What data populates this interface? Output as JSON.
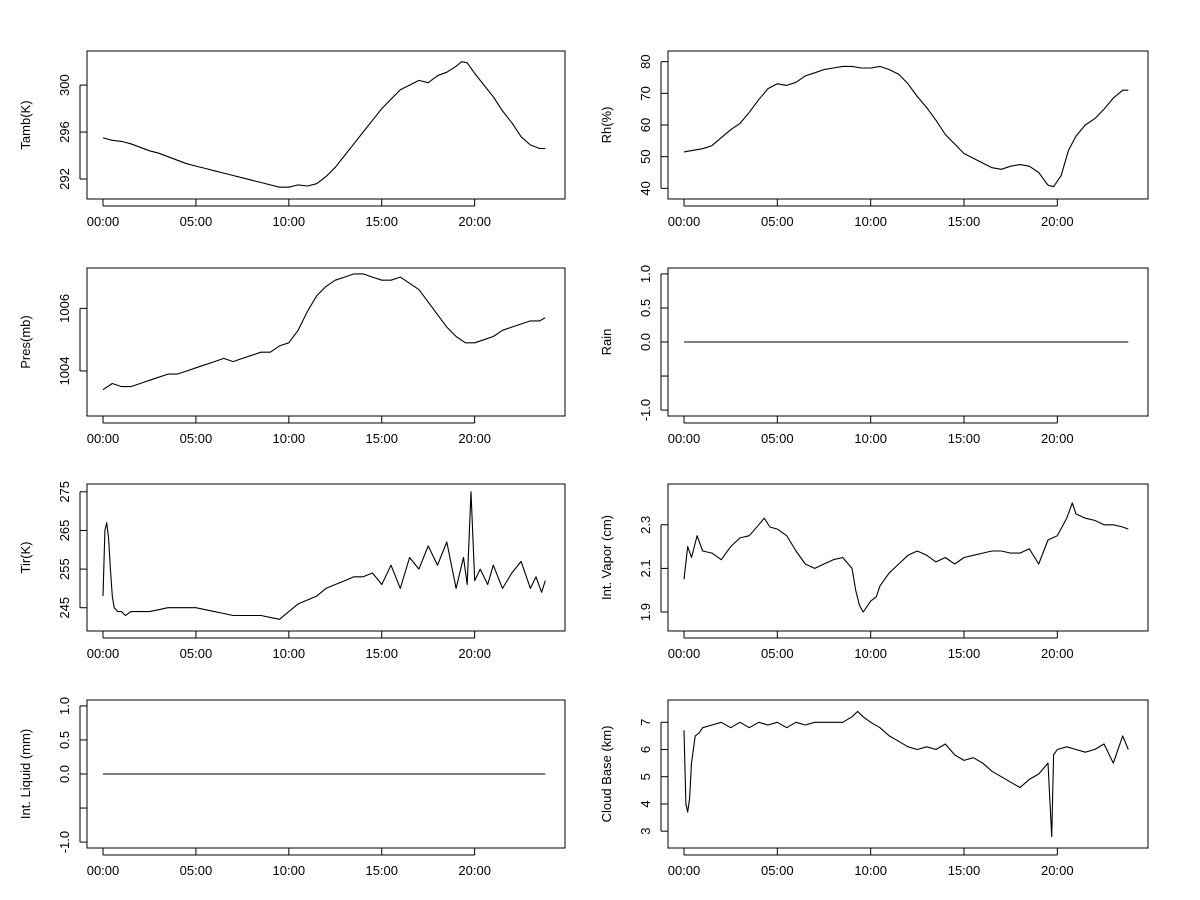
{
  "chart_data": [
    {
      "type": "line",
      "ylabel": "Tamb(K)",
      "x_ticks": [
        "00:00",
        "05:00",
        "10:00",
        "15:00",
        "20:00"
      ],
      "y_ticks": [
        292,
        296,
        300
      ],
      "xlim": [
        0,
        24
      ],
      "ylim": [
        290.8,
        302.4
      ],
      "series": [
        {
          "x": [
            0,
            0.5,
            1,
            1.5,
            2,
            2.5,
            3,
            3.5,
            4,
            4.5,
            5,
            5.5,
            6,
            6.5,
            7,
            7.5,
            8,
            8.5,
            9,
            9.5,
            10,
            10.5,
            11,
            11.5,
            12,
            12.5,
            13,
            13.5,
            14,
            14.5,
            15,
            15.5,
            16,
            16.5,
            17,
            17.5,
            18,
            18.5,
            19,
            19.3,
            19.6,
            20,
            20.5,
            21,
            21.5,
            22,
            22.5,
            23,
            23.5,
            23.8
          ],
          "y": [
            295.5,
            295.3,
            295.2,
            295.0,
            294.7,
            294.4,
            294.2,
            293.9,
            293.6,
            293.3,
            293.1,
            292.9,
            292.7,
            292.5,
            292.3,
            292.1,
            291.9,
            291.7,
            291.5,
            291.3,
            291.3,
            291.5,
            291.4,
            291.6,
            292.2,
            293.0,
            294.0,
            295.0,
            296.0,
            297.0,
            298.0,
            298.8,
            299.6,
            300.0,
            300.4,
            300.2,
            300.8,
            301.1,
            301.6,
            302.0,
            301.9,
            301.0,
            300.0,
            299.0,
            297.8,
            296.8,
            295.6,
            294.9,
            294.6,
            294.6
          ]
        }
      ]
    },
    {
      "type": "line",
      "ylabel": "Rh(%)",
      "x_ticks": [
        "00:00",
        "05:00",
        "10:00",
        "15:00",
        "20:00"
      ],
      "y_ticks": [
        40,
        50,
        60,
        70,
        80
      ],
      "xlim": [
        0,
        24
      ],
      "ylim": [
        38.5,
        81.5
      ],
      "series": [
        {
          "x": [
            0,
            0.5,
            1,
            1.5,
            2,
            2.5,
            3,
            3.5,
            4,
            4.5,
            5,
            5.5,
            6,
            6.5,
            7,
            7.5,
            8,
            8.5,
            9,
            9.5,
            10,
            10.5,
            11,
            11.5,
            12,
            12.5,
            13,
            13.5,
            14,
            14.5,
            15,
            15.5,
            16,
            16.5,
            17,
            17.5,
            18,
            18.5,
            19,
            19.5,
            19.8,
            20.2,
            20.6,
            21,
            21.5,
            22,
            22.5,
            23,
            23.5,
            23.8
          ],
          "y": [
            51.5,
            52,
            52.5,
            53.5,
            56,
            58.5,
            60.5,
            64,
            68,
            71.5,
            73,
            72.5,
            73.5,
            75.5,
            76.5,
            77.5,
            78,
            78.5,
            78.5,
            78,
            78,
            78.5,
            77.5,
            76,
            73,
            69,
            65.5,
            61.5,
            57,
            54,
            51,
            49.5,
            48,
            46.5,
            46,
            47,
            47.5,
            47,
            45,
            41,
            40.5,
            44,
            52,
            56.5,
            60,
            62,
            65,
            68.5,
            71,
            71
          ]
        }
      ]
    },
    {
      "type": "line",
      "ylabel": "Pres(mb)",
      "x_ticks": [
        "00:00",
        "05:00",
        "10:00",
        "15:00",
        "20:00"
      ],
      "y_ticks": [
        1004,
        1006
      ],
      "xlim": [
        0,
        24
      ],
      "ylim": [
        1002.75,
        1007.1
      ],
      "series": [
        {
          "x": [
            0,
            0.5,
            1,
            1.5,
            2,
            2.5,
            3,
            3.5,
            4,
            4.5,
            5,
            5.5,
            6,
            6.5,
            7,
            7.5,
            8,
            8.5,
            9,
            9.5,
            10,
            10.5,
            11,
            11.5,
            12,
            12.5,
            13,
            13.5,
            14,
            14.5,
            15,
            15.5,
            16,
            16.5,
            17,
            17.5,
            18,
            18.5,
            19,
            19.5,
            20,
            20.5,
            21,
            21.5,
            22,
            22.5,
            23,
            23.5,
            23.8
          ],
          "y": [
            1003.4,
            1003.6,
            1003.5,
            1003.5,
            1003.6,
            1003.7,
            1003.8,
            1003.9,
            1003.9,
            1004.0,
            1004.1,
            1004.2,
            1004.3,
            1004.4,
            1004.3,
            1004.4,
            1004.5,
            1004.6,
            1004.6,
            1004.8,
            1004.9,
            1005.3,
            1005.9,
            1006.4,
            1006.7,
            1006.9,
            1007.0,
            1007.1,
            1007.1,
            1007.0,
            1006.9,
            1006.9,
            1007.0,
            1006.8,
            1006.6,
            1006.2,
            1005.8,
            1005.4,
            1005.1,
            1004.9,
            1004.9,
            1005.0,
            1005.1,
            1005.3,
            1005.4,
            1005.5,
            1005.6,
            1005.6,
            1005.7
          ]
        }
      ]
    },
    {
      "type": "line",
      "ylabel": "Rain",
      "x_ticks": [
        "00:00",
        "05:00",
        "10:00",
        "15:00",
        "20:00"
      ],
      "y_ticks": [
        -1.0,
        -0.5,
        0.0,
        0.5,
        1.0
      ],
      "y_tick_labels": [
        "-1.0",
        "",
        "0.0",
        "0.5",
        "1.0"
      ],
      "xlim": [
        0,
        24
      ],
      "ylim": [
        -1.0,
        1.0
      ],
      "series": [
        {
          "x": [
            0,
            24
          ],
          "y": [
            0,
            0
          ]
        }
      ]
    },
    {
      "type": "line",
      "ylabel": "Tir(K)",
      "x_ticks": [
        "00:00",
        "05:00",
        "10:00",
        "15:00",
        "20:00"
      ],
      "y_ticks": [
        245,
        255,
        265,
        275
      ],
      "xlim": [
        0,
        24
      ],
      "ylim": [
        240.5,
        275.5
      ],
      "series": [
        {
          "x": [
            0,
            0.1,
            0.2,
            0.3,
            0.4,
            0.5,
            0.6,
            0.8,
            1,
            1.2,
            1.5,
            2,
            2.5,
            3,
            3.5,
            4,
            4.5,
            5,
            5.5,
            6,
            6.5,
            7,
            7.5,
            8,
            8.5,
            9,
            9.5,
            10,
            10.5,
            11,
            11.5,
            12,
            12.5,
            13,
            13.5,
            14,
            14.5,
            15,
            15.5,
            16,
            16.5,
            17,
            17.5,
            18,
            18.5,
            19,
            19.4,
            19.6,
            19.8,
            20,
            20.3,
            20.7,
            21,
            21.5,
            22,
            22.5,
            23,
            23.3,
            23.6,
            23.8
          ],
          "y": [
            248,
            265,
            267,
            263,
            255,
            248,
            245,
            244,
            244,
            243,
            244,
            244,
            244,
            244.5,
            245,
            245,
            245,
            245,
            244.5,
            244,
            243.5,
            243,
            243,
            243,
            243,
            242.5,
            242,
            244,
            246,
            247,
            248,
            250,
            251,
            252,
            253,
            253,
            254,
            251,
            256,
            250,
            258,
            255,
            261,
            256,
            262,
            250,
            258,
            251,
            275,
            252,
            255,
            251,
            256,
            250,
            254,
            257,
            250,
            253,
            249,
            252
          ]
        }
      ]
    },
    {
      "type": "line",
      "ylabel": "Int. Vapor (cm)",
      "x_ticks": [
        "00:00",
        "05:00",
        "10:00",
        "15:00",
        "20:00"
      ],
      "y_ticks": [
        1.9,
        2.1,
        2.3
      ],
      "xlim": [
        0,
        24
      ],
      "ylim": [
        1.84,
        2.46
      ],
      "series": [
        {
          "x": [
            0,
            0.2,
            0.4,
            0.7,
            1,
            1.5,
            2,
            2.5,
            3,
            3.5,
            4,
            4.3,
            4.6,
            5,
            5.5,
            6,
            6.5,
            7,
            7.5,
            8,
            8.5,
            9,
            9.2,
            9.4,
            9.6,
            10,
            10.3,
            10.5,
            11,
            11.5,
            12,
            12.5,
            13,
            13.5,
            14,
            14.5,
            15,
            15.5,
            16,
            16.5,
            17,
            17.5,
            18,
            18.5,
            19,
            19.5,
            20,
            20.5,
            20.8,
            21,
            21.5,
            22,
            22.5,
            23,
            23.5,
            23.8
          ],
          "y": [
            2.05,
            2.2,
            2.15,
            2.25,
            2.18,
            2.17,
            2.14,
            2.2,
            2.24,
            2.25,
            2.3,
            2.33,
            2.29,
            2.28,
            2.25,
            2.18,
            2.12,
            2.1,
            2.12,
            2.14,
            2.15,
            2.1,
            2.0,
            1.93,
            1.9,
            1.95,
            1.97,
            2.02,
            2.08,
            2.12,
            2.16,
            2.18,
            2.16,
            2.13,
            2.15,
            2.12,
            2.15,
            2.16,
            2.17,
            2.18,
            2.18,
            2.17,
            2.17,
            2.19,
            2.12,
            2.23,
            2.25,
            2.33,
            2.4,
            2.35,
            2.33,
            2.32,
            2.3,
            2.3,
            2.29,
            2.28
          ]
        }
      ]
    },
    {
      "type": "line",
      "ylabel": "Int. Liquid (mm)",
      "x_ticks": [
        "00:00",
        "05:00",
        "10:00",
        "15:00",
        "20:00"
      ],
      "y_ticks": [
        -1.0,
        -0.5,
        0.0,
        0.5,
        1.0
      ],
      "y_tick_labels": [
        "-1.0",
        "",
        "0.0",
        "0.5",
        "1.0"
      ],
      "xlim": [
        0,
        24
      ],
      "ylim": [
        -1.0,
        1.0
      ],
      "series": [
        {
          "x": [
            0,
            24
          ],
          "y": [
            0,
            0
          ]
        }
      ]
    },
    {
      "type": "line",
      "ylabel": "Cloud Base (km)",
      "x_ticks": [
        "00:00",
        "05:00",
        "10:00",
        "15:00",
        "20:00"
      ],
      "y_ticks": [
        3,
        4,
        5,
        6,
        7
      ],
      "xlim": [
        0,
        24
      ],
      "ylim": [
        2.6,
        7.6
      ],
      "series": [
        {
          "x": [
            0,
            0.1,
            0.2,
            0.3,
            0.4,
            0.6,
            0.8,
            1,
            1.5,
            2,
            2.5,
            3,
            3.5,
            4,
            4.5,
            5,
            5.5,
            6,
            6.5,
            7,
            7.5,
            8,
            8.5,
            9,
            9.3,
            9.6,
            10,
            10.5,
            11,
            11.5,
            12,
            12.5,
            13,
            13.5,
            14,
            14.5,
            15,
            15.5,
            16,
            16.5,
            17,
            17.5,
            18,
            18.5,
            19,
            19.5,
            19.7,
            19.8,
            20,
            20.5,
            21,
            21.5,
            22,
            22.5,
            23,
            23.5,
            23.8
          ],
          "y": [
            6.7,
            4.0,
            3.7,
            4.2,
            5.5,
            6.5,
            6.6,
            6.8,
            6.9,
            7.0,
            6.8,
            7.0,
            6.8,
            7.0,
            6.9,
            7.0,
            6.8,
            7.0,
            6.9,
            7.0,
            7.0,
            7.0,
            7.0,
            7.2,
            7.4,
            7.2,
            7.0,
            6.8,
            6.5,
            6.3,
            6.1,
            6.0,
            6.1,
            6.0,
            6.2,
            5.8,
            5.6,
            5.7,
            5.5,
            5.2,
            5.0,
            4.8,
            4.6,
            4.9,
            5.1,
            5.5,
            2.8,
            5.8,
            6.0,
            6.1,
            6.0,
            5.9,
            6.0,
            6.2,
            5.5,
            6.5,
            6.0
          ]
        }
      ]
    }
  ]
}
